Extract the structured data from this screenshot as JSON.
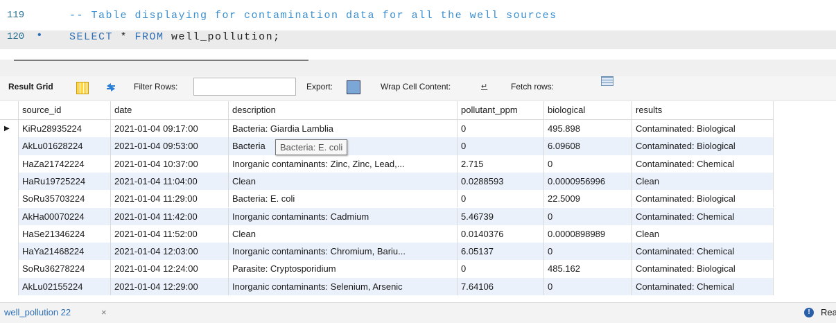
{
  "editor": {
    "lines": [
      {
        "number": "119",
        "tokens": [
          {
            "text": "-- Table displaying for contamination data for all the well sources",
            "color": "#3a8fd1"
          }
        ]
      },
      {
        "number": "120",
        "marker": "•",
        "tokens": [
          {
            "text": "SELECT",
            "color": "#2f6fb3"
          },
          {
            "text": " * ",
            "color": "#222222"
          },
          {
            "text": "FROM",
            "color": "#2f6fb3"
          },
          {
            "text": " well_pollution;",
            "color": "#222222"
          }
        ]
      }
    ]
  },
  "toolbar": {
    "result_grid": "Result Grid",
    "filter_rows": "Filter Rows:",
    "export": "Export:",
    "wrap_cell_content": "Wrap Cell Content:",
    "fetch_rows": "Fetch rows:"
  },
  "table": {
    "columns": [
      "source_id",
      "date",
      "description",
      "pollutant_ppm",
      "biological",
      "results"
    ],
    "rows": [
      [
        "KiRu28935224",
        "2021-01-04 09:17:00",
        "Bacteria: Giardia Lamblia",
        "0",
        "495.898",
        "Contaminated: Biological"
      ],
      [
        "AkLu01628224",
        "2021-01-04 09:53:00",
        "Bacteria",
        "0",
        "6.09608",
        "Contaminated: Biological"
      ],
      [
        "HaZa21742224",
        "2021-01-04 10:37:00",
        "Inorganic contaminants: Zinc, Zinc, Lead,...",
        "2.715",
        "0",
        "Contaminated: Chemical"
      ],
      [
        "HaRu19725224",
        "2021-01-04 11:04:00",
        "Clean",
        "0.0288593",
        "0.0000956996",
        "Clean"
      ],
      [
        "SoRu35703224",
        "2021-01-04 11:29:00",
        "Bacteria: E. coli",
        "0",
        "22.5009",
        "Contaminated: Biological"
      ],
      [
        "AkHa00070224",
        "2021-01-04 11:42:00",
        "Inorganic contaminants: Cadmium",
        "5.46739",
        "0",
        "Contaminated: Chemical"
      ],
      [
        "HaSe21346224",
        "2021-01-04 11:52:00",
        "Clean",
        "0.0140376",
        "0.0000898989",
        "Clean"
      ],
      [
        "HaYa21468224",
        "2021-01-04 12:03:00",
        "Inorganic contaminants: Chromium, Bariu...",
        "6.05137",
        "0",
        "Contaminated: Chemical"
      ],
      [
        "SoRu36278224",
        "2021-01-04 12:24:00",
        "Parasite: Cryptosporidium",
        "0",
        "485.162",
        "Contaminated: Biological"
      ],
      [
        "AkLu02155224",
        "2021-01-04 12:29:00",
        "Inorganic contaminants: Selenium, Arsenic",
        "7.64106",
        "0",
        "Contaminated: Chemical"
      ]
    ]
  },
  "tooltip": "Bacteria: E. coli",
  "tab": {
    "title": "well_pollution 22",
    "close": "×"
  },
  "status": "Rea"
}
